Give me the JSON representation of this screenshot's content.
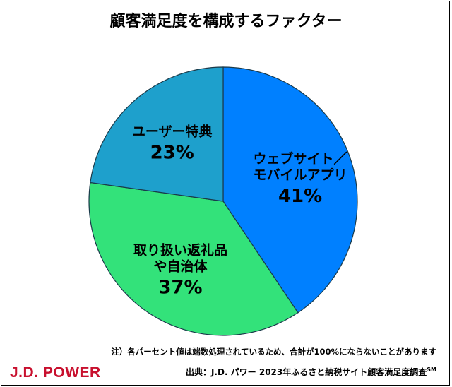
{
  "chart_data": {
    "type": "pie",
    "title": "顧客満足度を構成するファクター",
    "slices": [
      {
        "label_lines": [
          "ウェブサイト／",
          "モバイルアプリ"
        ],
        "value": 41,
        "value_label": "41%",
        "color": "#0080ff"
      },
      {
        "label_lines": [
          "取り扱い返礼品",
          "や自治体"
        ],
        "value": 37,
        "value_label": "37%",
        "color": "#33e27a"
      },
      {
        "label_lines": [
          "ユーザー特典"
        ],
        "value": 23,
        "value_label": "23%",
        "color": "#1ea0cc"
      }
    ]
  },
  "footer": {
    "note": "注）各パーセント値は端数処理されているため、合計が100%にならないことがあります",
    "source_text": "出典：J.D. パワー 2023年ふるさと納税サイト顧客満足度調査",
    "source_mark": "SM",
    "logo_text": "J.D. POWER",
    "logo_color": "#c8102e"
  }
}
